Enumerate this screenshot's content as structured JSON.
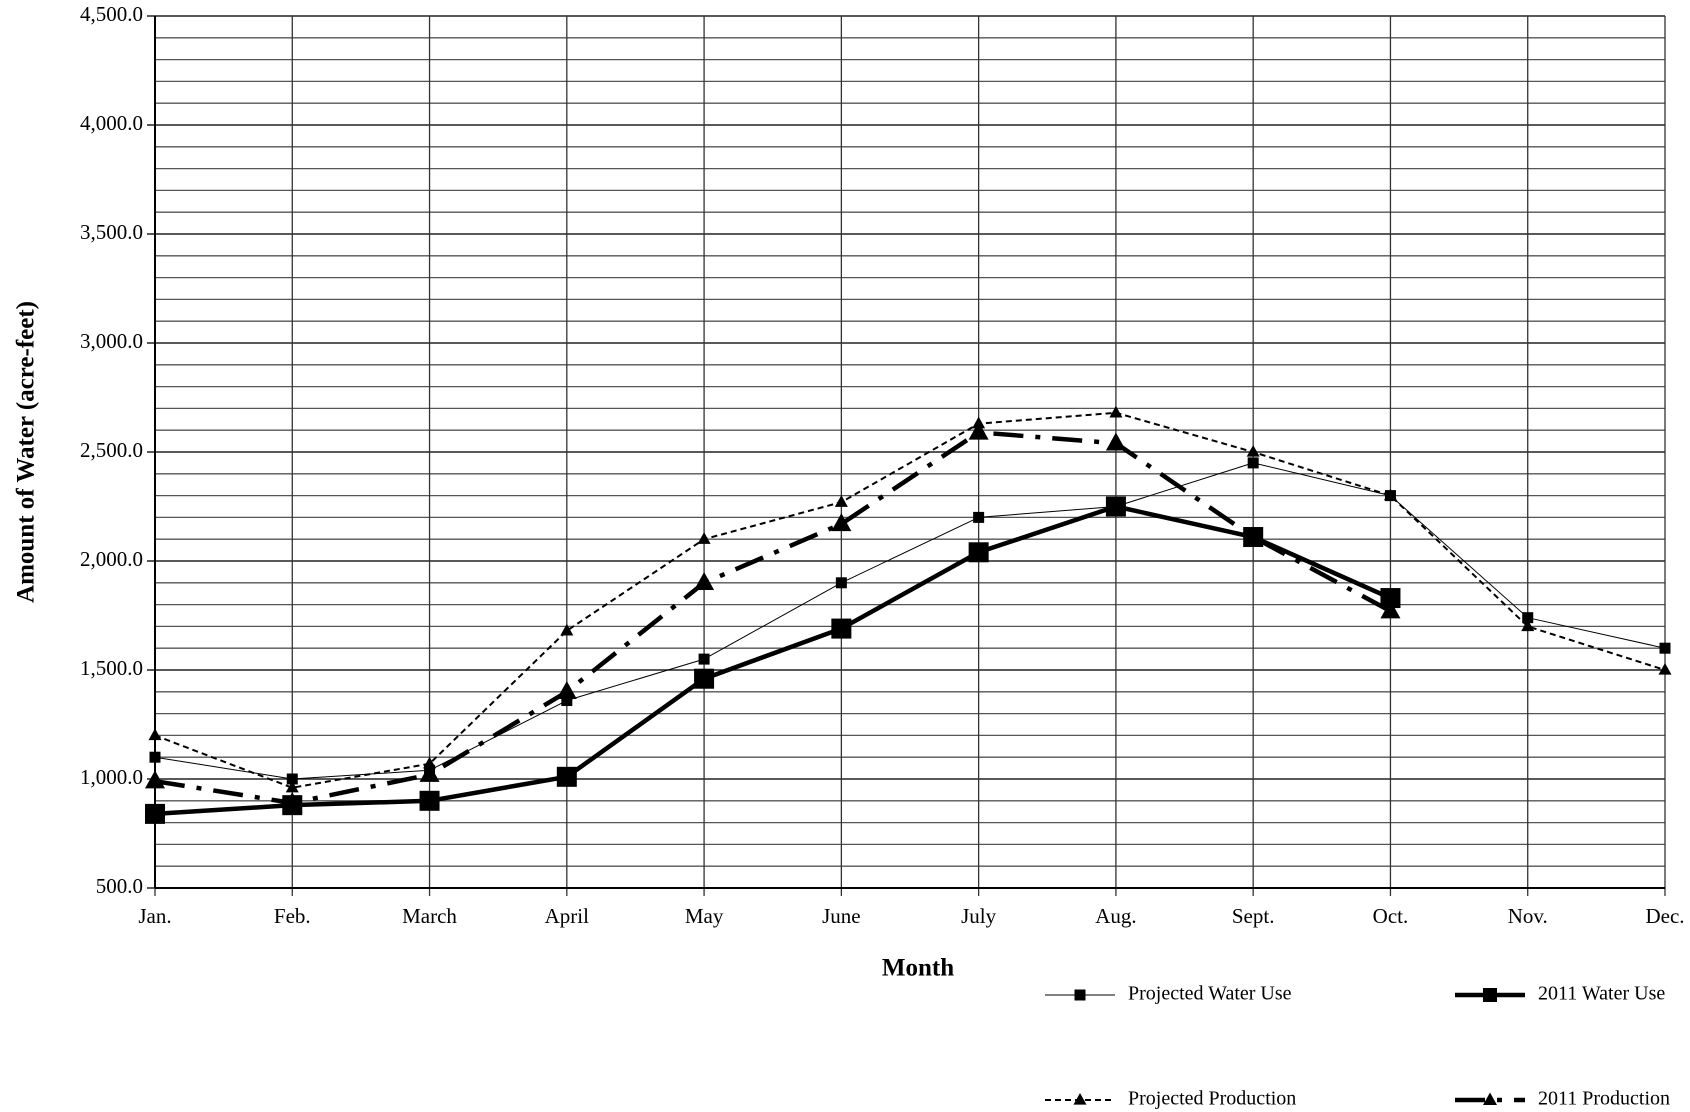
{
  "chart_data": {
    "type": "line",
    "x_label": "Month",
    "y_label": "Amount of Water (acre-feet)",
    "categories": [
      "Jan.",
      "Feb.",
      "March",
      "April",
      "May",
      "June",
      "July",
      "Aug.",
      "Sept.",
      "Oct.",
      "Nov.",
      "Dec."
    ],
    "ylim": [
      500,
      4500
    ],
    "yticks": [
      {
        "value": 500,
        "label": "500.0"
      },
      {
        "value": 1000,
        "label": "1,000.0"
      },
      {
        "value": 1500,
        "label": "1,500.0"
      },
      {
        "value": 2000,
        "label": "2,000.0"
      },
      {
        "value": 2500,
        "label": "2,500.0"
      },
      {
        "value": 3000,
        "label": "3,000.0"
      },
      {
        "value": 3500,
        "label": "3,500.0"
      },
      {
        "value": 4000,
        "label": "4,000.0"
      },
      {
        "value": 4500,
        "label": "4,500.0"
      }
    ],
    "grid": true,
    "minor_grid": true,
    "legend": "bottom-right",
    "series": [
      {
        "name": "Projected Water Use",
        "color": "#000000",
        "dash": "none",
        "width": 1,
        "marker": "square",
        "marker_size": 11,
        "values": [
          1100,
          1000,
          1040,
          1360,
          1550,
          1900,
          2200,
          2250,
          2450,
          2300,
          1740,
          1600
        ]
      },
      {
        "name": "2011 Water Use",
        "color": "#000000",
        "dash": "none",
        "width": 4.5,
        "marker": "square",
        "marker_size": 20,
        "values": [
          840,
          880,
          900,
          1010,
          1460,
          1690,
          2040,
          2250,
          2110,
          1830,
          null,
          null
        ]
      },
      {
        "name": "Projected Production",
        "color": "#000000",
        "dash": "6,4",
        "width": 2,
        "marker": "triangle",
        "marker_size": 13,
        "values": [
          1200,
          960,
          1070,
          1680,
          2100,
          2270,
          2630,
          2680,
          2500,
          2300,
          1700,
          1500
        ]
      },
      {
        "name": "2011 Production",
        "color": "#000000",
        "dash": "30,12,5,12",
        "width": 4.5,
        "marker": "triangle",
        "marker_size": 20,
        "values": [
          990,
          890,
          1020,
          1400,
          1900,
          2170,
          2590,
          2540,
          2110,
          1770,
          null,
          null
        ]
      }
    ]
  }
}
